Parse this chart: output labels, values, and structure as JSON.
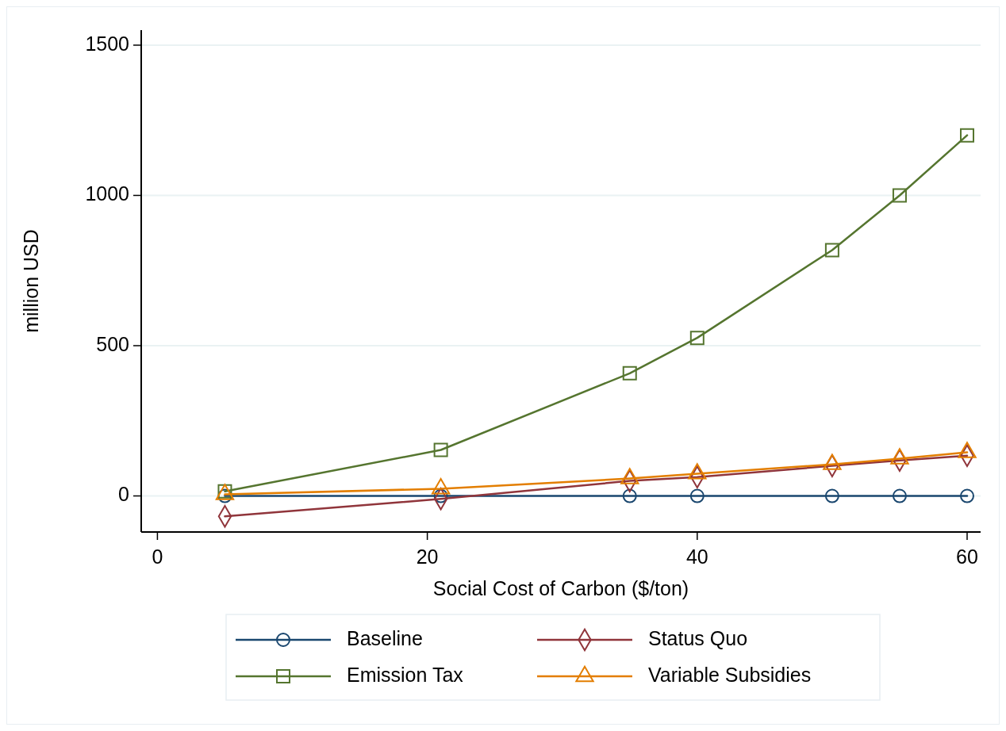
{
  "chart_data": {
    "type": "line",
    "xlabel": "Social Cost of Carbon ($/ton)",
    "ylabel": "million USD",
    "x": [
      5,
      21,
      35,
      40,
      50,
      55,
      60
    ],
    "series": [
      {
        "name": "Baseline",
        "color": "#1a476f",
        "marker": "circle",
        "values": [
          0,
          0,
          0,
          0,
          0,
          0,
          0
        ]
      },
      {
        "name": "Status Quo",
        "color": "#90353b",
        "marker": "diamond",
        "values": [
          -68,
          -10,
          50,
          63,
          100,
          118,
          134
        ]
      },
      {
        "name": "Emission Tax",
        "color": "#55752f",
        "marker": "square",
        "values": [
          15,
          153,
          408,
          526,
          818,
          1000,
          1200
        ]
      },
      {
        "name": "Variable Subsidies",
        "color": "#e37e00",
        "marker": "triangle",
        "values": [
          5,
          24,
          58,
          74,
          105,
          124,
          145
        ]
      }
    ],
    "xlim": [
      -1.2,
      61
    ],
    "xticks": [
      0,
      20,
      40,
      60
    ],
    "ylim": [
      -120,
      1550
    ],
    "yticks": [
      0,
      500,
      1000,
      1500
    ],
    "grid": "y",
    "legend": "bottom",
    "line_style": "solid"
  }
}
